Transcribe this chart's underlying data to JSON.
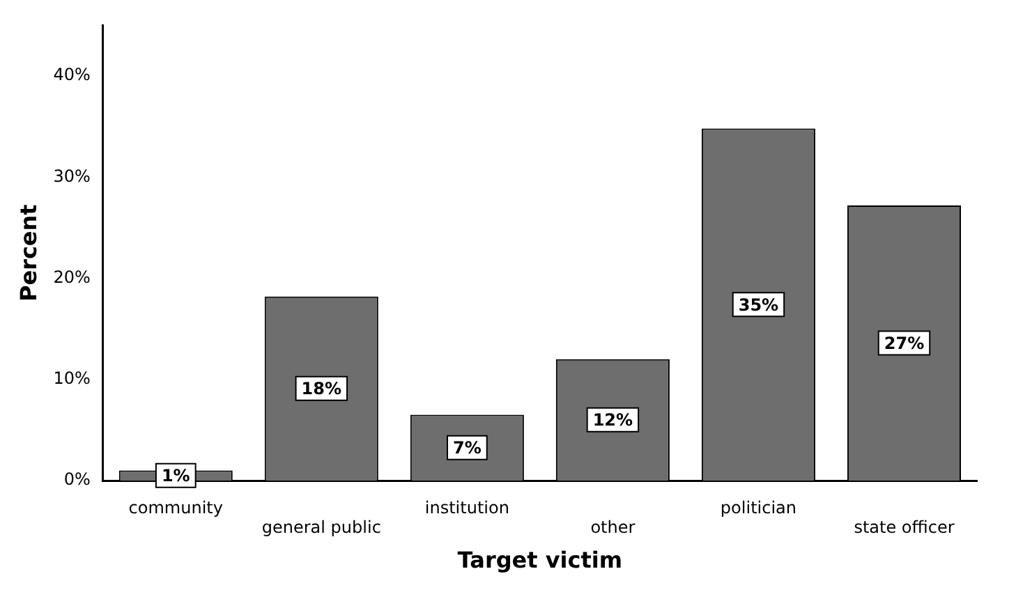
{
  "chart_data": {
    "type": "bar",
    "xlabel": "Target victim",
    "ylabel": "Percent",
    "categories": [
      "community",
      "general public",
      "institution",
      "other",
      "politician",
      "state officer"
    ],
    "values": [
      1.0,
      18.2,
      6.5,
      12.0,
      34.8,
      27.2
    ],
    "value_labels": [
      "1%",
      "18%",
      "7%",
      "12%",
      "35%",
      "27%"
    ],
    "color": "#6e6e6e",
    "ylim": [
      0,
      45
    ],
    "yticks": [
      {
        "value": 0,
        "label": "0%"
      },
      {
        "value": 10,
        "label": "10%"
      },
      {
        "value": 20,
        "label": "20%"
      },
      {
        "value": 30,
        "label": "30%"
      },
      {
        "value": 40,
        "label": "40%"
      }
    ],
    "grid": false,
    "legend": false
  }
}
